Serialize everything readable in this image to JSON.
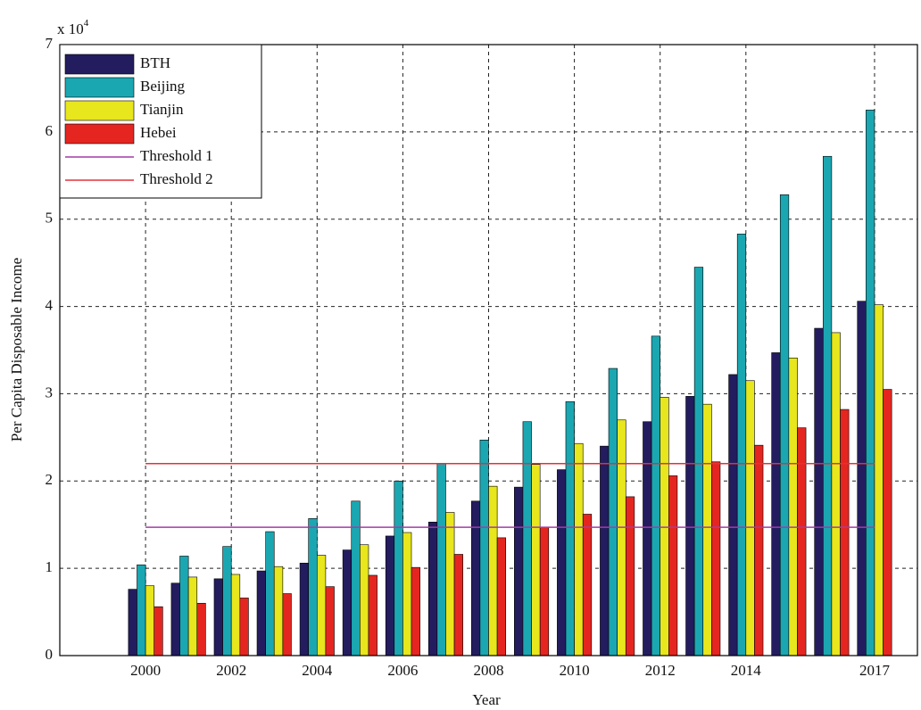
{
  "chart_data": {
    "type": "bar",
    "x_label": "Year",
    "y_label": "Per Capita Disposable Income",
    "y_multiplier": {
      "base": "x 10",
      "exponent": "4"
    },
    "x": [
      2000,
      2001,
      2002,
      2003,
      2004,
      2005,
      2006,
      2007,
      2008,
      2009,
      2010,
      2011,
      2012,
      2013,
      2014,
      2015,
      2016,
      2017
    ],
    "series": [
      {
        "name": "BTH",
        "color": "#231d5f",
        "values": [
          0.76,
          0.83,
          0.88,
          0.97,
          1.06,
          1.21,
          1.37,
          1.53,
          1.77,
          1.93,
          2.13,
          2.4,
          2.68,
          2.97,
          3.22,
          3.47,
          3.75,
          4.06
        ]
      },
      {
        "name": "Beijing",
        "color": "#1ba7b1",
        "values": [
          1.04,
          1.14,
          1.25,
          1.42,
          1.57,
          1.77,
          2.0,
          2.2,
          2.47,
          2.68,
          2.91,
          3.29,
          3.66,
          4.45,
          4.83,
          5.28,
          5.72,
          6.25
        ]
      },
      {
        "name": "Tianjin",
        "color": "#e8e61c",
        "values": [
          0.8,
          0.9,
          0.93,
          1.02,
          1.15,
          1.27,
          1.41,
          1.64,
          1.94,
          2.19,
          2.43,
          2.7,
          2.96,
          2.88,
          3.15,
          3.41,
          3.7,
          4.02
        ]
      },
      {
        "name": "Hebei",
        "color": "#e52620",
        "values": [
          0.56,
          0.6,
          0.66,
          0.71,
          0.79,
          0.92,
          1.01,
          1.16,
          1.35,
          1.47,
          1.62,
          1.82,
          2.06,
          2.22,
          2.41,
          2.61,
          2.82,
          3.05
        ]
      },
      {
        "name": "Threshold 1",
        "type": "line",
        "color": "#a23ca6",
        "x": [
          2000,
          2017
        ],
        "values": [
          1.47,
          1.47
        ]
      },
      {
        "name": "Threshold 2",
        "type": "line",
        "color": "#e0323a",
        "x": [
          2000,
          2017
        ],
        "values": [
          2.2,
          2.2
        ]
      }
    ],
    "xlim": [
      1998,
      2018
    ],
    "xticks": [
      2000,
      2002,
      2004,
      2006,
      2008,
      2010,
      2012,
      2014,
      2017
    ],
    "ylim": [
      0,
      7
    ],
    "yticks": [
      0,
      1,
      2,
      3,
      4,
      5,
      6,
      7
    ],
    "grid": true,
    "legend": "top-left"
  }
}
